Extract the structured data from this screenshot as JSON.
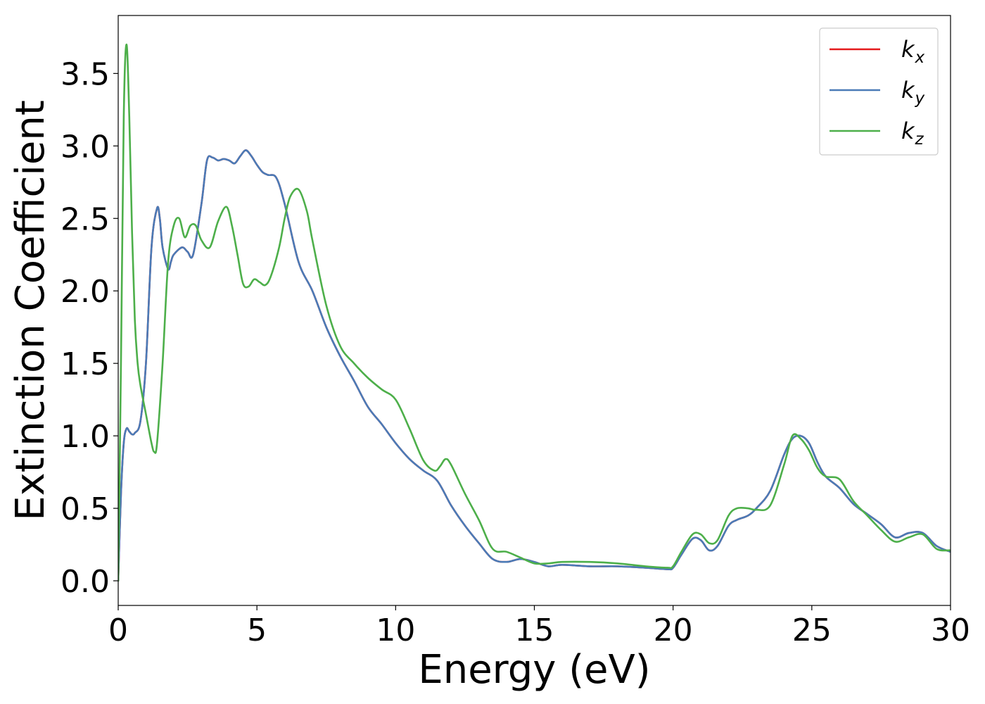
{
  "chart_data": {
    "type": "line",
    "title": "",
    "xlabel": "Energy (eV)",
    "ylabel": "Extinction Coefficient",
    "xlim": [
      0,
      30
    ],
    "ylim": [
      -0.17,
      3.9
    ],
    "xticks": [
      0,
      5,
      10,
      15,
      20,
      25,
      30
    ],
    "xtick_labels": [
      "0",
      "5",
      "10",
      "15",
      "20",
      "25",
      "30"
    ],
    "yticks": [
      0.0,
      0.5,
      1.0,
      1.5,
      2.0,
      2.5,
      3.0,
      3.5
    ],
    "ytick_labels": [
      "0.0",
      "0.5",
      "1.0",
      "1.5",
      "2.0",
      "2.5",
      "3.0",
      "3.5"
    ],
    "grid": false,
    "legend_position": "top-right",
    "series": [
      {
        "name": "k_x",
        "label_main": "k",
        "label_sub": "x",
        "color": "#e41a1c",
        "x": [
          0,
          0.1,
          0.2,
          0.3,
          0.4,
          0.5,
          0.6,
          0.8,
          1.0,
          1.2,
          1.4,
          1.5,
          1.6,
          1.8,
          1.9,
          2.0,
          2.3,
          2.5,
          2.7,
          3.0,
          3.2,
          3.4,
          3.6,
          3.8,
          4.0,
          4.2,
          4.4,
          4.6,
          4.8,
          5.0,
          5.2,
          5.4,
          5.7,
          6.0,
          6.5,
          7.0,
          7.5,
          8.0,
          8.5,
          9.0,
          9.5,
          10.0,
          10.5,
          11.0,
          11.5,
          12.0,
          12.5,
          13.0,
          13.5,
          14.0,
          14.5,
          15.0,
          15.5,
          16.0,
          17.0,
          18.0,
          19.0,
          19.8,
          20.0,
          20.3,
          20.7,
          21.0,
          21.3,
          21.6,
          22.0,
          22.3,
          22.7,
          23.0,
          23.5,
          24.0,
          24.3,
          24.6,
          24.9,
          25.2,
          25.5,
          26.0,
          26.5,
          27.0,
          27.5,
          28.0,
          28.5,
          29.0,
          29.5,
          30.0
        ],
        "y": [
          0.0,
          0.6,
          0.95,
          1.05,
          1.03,
          1.01,
          1.02,
          1.1,
          1.5,
          2.3,
          2.57,
          2.5,
          2.3,
          2.15,
          2.2,
          2.25,
          2.3,
          2.27,
          2.25,
          2.6,
          2.9,
          2.92,
          2.9,
          2.91,
          2.9,
          2.88,
          2.93,
          2.97,
          2.93,
          2.87,
          2.82,
          2.8,
          2.78,
          2.6,
          2.2,
          2.0,
          1.75,
          1.55,
          1.38,
          1.2,
          1.08,
          0.95,
          0.84,
          0.76,
          0.69,
          0.52,
          0.38,
          0.26,
          0.15,
          0.13,
          0.15,
          0.13,
          0.1,
          0.11,
          0.1,
          0.1,
          0.09,
          0.08,
          0.09,
          0.18,
          0.29,
          0.28,
          0.21,
          0.24,
          0.38,
          0.42,
          0.45,
          0.5,
          0.62,
          0.87,
          0.98,
          1.0,
          0.95,
          0.82,
          0.72,
          0.64,
          0.53,
          0.46,
          0.39,
          0.3,
          0.33,
          0.33,
          0.24,
          0.2
        ]
      },
      {
        "name": "k_y",
        "label_main": "k",
        "label_sub": "y",
        "color": "#4a7bb7",
        "x": [
          0,
          0.1,
          0.2,
          0.3,
          0.4,
          0.5,
          0.6,
          0.8,
          1.0,
          1.2,
          1.4,
          1.5,
          1.6,
          1.8,
          1.9,
          2.0,
          2.3,
          2.5,
          2.7,
          3.0,
          3.2,
          3.4,
          3.6,
          3.8,
          4.0,
          4.2,
          4.4,
          4.6,
          4.8,
          5.0,
          5.2,
          5.4,
          5.7,
          6.0,
          6.5,
          7.0,
          7.5,
          8.0,
          8.5,
          9.0,
          9.5,
          10.0,
          10.5,
          11.0,
          11.5,
          12.0,
          12.5,
          13.0,
          13.5,
          14.0,
          14.5,
          15.0,
          15.5,
          16.0,
          17.0,
          18.0,
          19.0,
          19.8,
          20.0,
          20.3,
          20.7,
          21.0,
          21.3,
          21.6,
          22.0,
          22.3,
          22.7,
          23.0,
          23.5,
          24.0,
          24.3,
          24.6,
          24.9,
          25.2,
          25.5,
          26.0,
          26.5,
          27.0,
          27.5,
          28.0,
          28.5,
          29.0,
          29.5,
          30.0
        ],
        "y": [
          0.0,
          0.6,
          0.95,
          1.05,
          1.03,
          1.01,
          1.02,
          1.1,
          1.5,
          2.3,
          2.57,
          2.5,
          2.3,
          2.15,
          2.2,
          2.25,
          2.3,
          2.27,
          2.25,
          2.6,
          2.9,
          2.92,
          2.9,
          2.91,
          2.9,
          2.88,
          2.93,
          2.97,
          2.93,
          2.87,
          2.82,
          2.8,
          2.78,
          2.6,
          2.2,
          2.0,
          1.75,
          1.55,
          1.38,
          1.2,
          1.08,
          0.95,
          0.84,
          0.76,
          0.69,
          0.52,
          0.38,
          0.26,
          0.15,
          0.13,
          0.15,
          0.13,
          0.1,
          0.11,
          0.1,
          0.1,
          0.09,
          0.08,
          0.09,
          0.18,
          0.29,
          0.28,
          0.21,
          0.24,
          0.38,
          0.42,
          0.45,
          0.5,
          0.62,
          0.87,
          0.98,
          1.0,
          0.95,
          0.82,
          0.72,
          0.64,
          0.53,
          0.46,
          0.39,
          0.3,
          0.33,
          0.33,
          0.24,
          0.2
        ]
      },
      {
        "name": "k_z",
        "label_main": "k",
        "label_sub": "z",
        "color": "#4daf4a",
        "x": [
          0,
          0.1,
          0.2,
          0.3,
          0.4,
          0.5,
          0.6,
          0.7,
          0.8,
          1.0,
          1.2,
          1.3,
          1.4,
          1.6,
          1.8,
          2.0,
          2.2,
          2.4,
          2.6,
          2.8,
          3.0,
          3.3,
          3.6,
          3.9,
          4.1,
          4.3,
          4.5,
          4.7,
          4.9,
          5.1,
          5.3,
          5.5,
          5.8,
          6.0,
          6.2,
          6.5,
          6.8,
          7.0,
          7.5,
          8.0,
          8.5,
          9.0,
          9.5,
          10.0,
          10.5,
          11.0,
          11.4,
          11.6,
          11.8,
          12.0,
          12.5,
          13.0,
          13.5,
          14.0,
          14.5,
          15.0,
          15.5,
          16.0,
          17.0,
          18.0,
          19.0,
          19.8,
          20.0,
          20.3,
          20.7,
          21.0,
          21.3,
          21.6,
          22.0,
          22.3,
          22.7,
          23.0,
          23.5,
          24.0,
          24.3,
          24.6,
          24.9,
          25.2,
          25.5,
          26.0,
          26.5,
          27.0,
          27.5,
          28.0,
          28.5,
          29.0,
          29.5,
          30.0
        ],
        "y": [
          0.0,
          1.5,
          3.2,
          3.7,
          3.2,
          2.4,
          1.8,
          1.5,
          1.35,
          1.15,
          0.95,
          0.89,
          0.95,
          1.5,
          2.2,
          2.45,
          2.5,
          2.37,
          2.45,
          2.45,
          2.35,
          2.3,
          2.48,
          2.58,
          2.45,
          2.25,
          2.05,
          2.03,
          2.08,
          2.06,
          2.04,
          2.1,
          2.3,
          2.5,
          2.65,
          2.7,
          2.55,
          2.35,
          1.9,
          1.62,
          1.5,
          1.4,
          1.32,
          1.25,
          1.05,
          0.83,
          0.76,
          0.79,
          0.84,
          0.8,
          0.6,
          0.42,
          0.22,
          0.2,
          0.16,
          0.12,
          0.12,
          0.13,
          0.13,
          0.12,
          0.1,
          0.09,
          0.1,
          0.2,
          0.32,
          0.32,
          0.26,
          0.28,
          0.45,
          0.5,
          0.5,
          0.49,
          0.52,
          0.8,
          1.0,
          0.98,
          0.9,
          0.78,
          0.72,
          0.7,
          0.55,
          0.45,
          0.35,
          0.27,
          0.3,
          0.32,
          0.22,
          0.21
        ]
      }
    ]
  }
}
